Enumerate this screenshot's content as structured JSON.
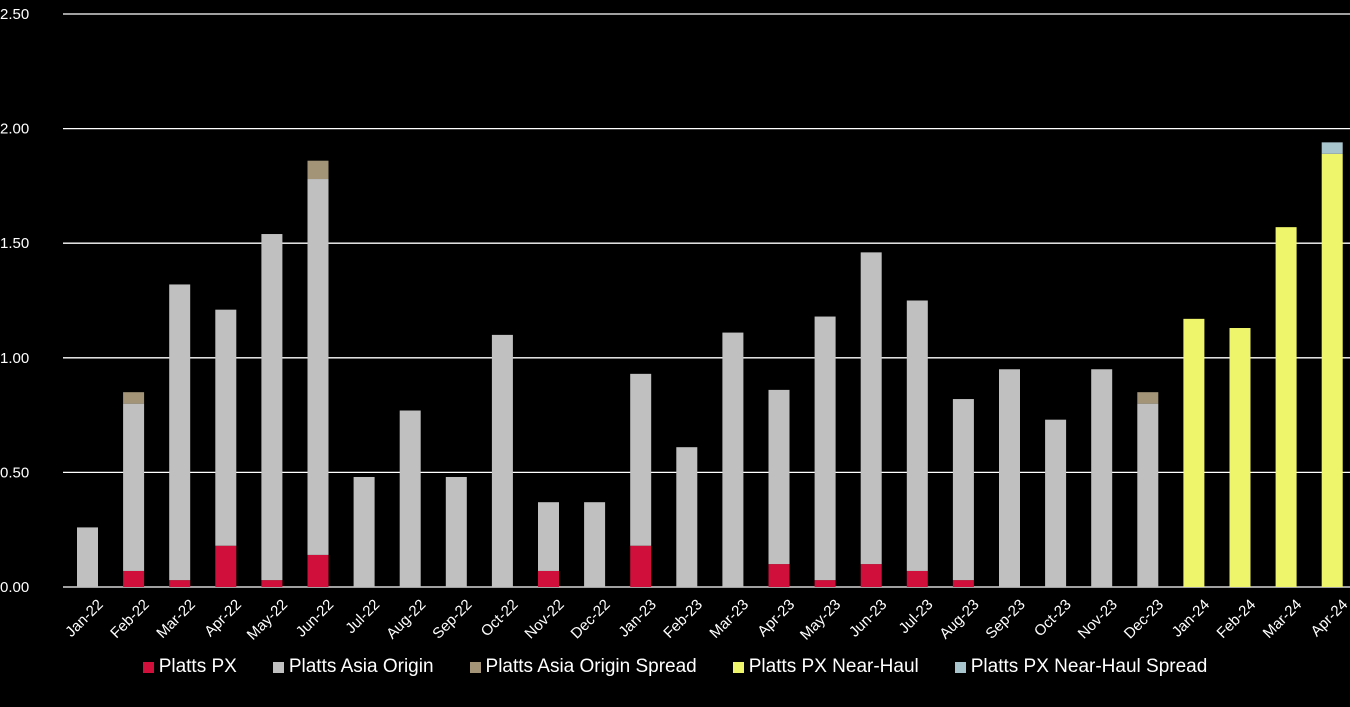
{
  "chart_data": {
    "type": "bar",
    "stacked": true,
    "categories": [
      "Jan-22",
      "Feb-22",
      "Mar-22",
      "Apr-22",
      "May-22",
      "Jun-22",
      "Jul-22",
      "Aug-22",
      "Sep-22",
      "Oct-22",
      "Nov-22",
      "Dec-22",
      "Jan-23",
      "Feb-23",
      "Mar-23",
      "Apr-23",
      "May-23",
      "Jun-23",
      "Jul-23",
      "Aug-23",
      "Sep-23",
      "Oct-23",
      "Nov-23",
      "Dec-23",
      "Jan-24",
      "Feb-24",
      "Mar-24",
      "Apr-24"
    ],
    "y_ticks": [
      "0.00",
      "0.50",
      "1.00",
      "1.50",
      "2.00",
      "2.50"
    ],
    "ylim": [
      0,
      2.5
    ],
    "grid": true,
    "legend_position": "bottom",
    "series": [
      {
        "name": "Platts PX",
        "color": "#d0103a",
        "values": [
          0,
          0.07,
          0.03,
          0.18,
          0.03,
          0.14,
          0,
          0,
          0,
          0,
          0.07,
          0,
          0.18,
          0,
          0,
          0.1,
          0.03,
          0.1,
          0.07,
          0.03,
          0,
          0,
          0,
          0,
          0,
          0,
          0,
          0
        ]
      },
      {
        "name": "Platts Asia Origin",
        "color": "#c0c0c0",
        "values": [
          0.26,
          0.73,
          1.29,
          1.03,
          1.51,
          1.64,
          0.48,
          0.77,
          0.48,
          1.1,
          0.3,
          0.37,
          0.75,
          0.61,
          1.11,
          0.76,
          1.15,
          1.36,
          1.18,
          0.79,
          0.95,
          0.73,
          0.95,
          0.8,
          0,
          0,
          0,
          0
        ]
      },
      {
        "name": "Platts Asia Origin Spread",
        "color": "#a39478",
        "values": [
          0,
          0.05,
          0,
          0,
          0,
          0.08,
          0,
          0,
          0,
          0,
          0,
          0,
          0,
          0,
          0,
          0,
          0,
          0,
          0,
          0,
          0,
          0,
          0,
          0.05,
          0,
          0,
          0,
          0
        ]
      },
      {
        "name": "Platts PX Near-Haul",
        "color": "#eff56a",
        "values": [
          0,
          0,
          0,
          0,
          0,
          0,
          0,
          0,
          0,
          0,
          0,
          0,
          0,
          0,
          0,
          0,
          0,
          0,
          0,
          0,
          0,
          0,
          0,
          0,
          1.17,
          1.13,
          1.57,
          1.89
        ]
      },
      {
        "name": "Platts PX Near-Haul Spread",
        "color": "#a8c4cc",
        "values": [
          0,
          0,
          0,
          0,
          0,
          0,
          0,
          0,
          0,
          0,
          0,
          0,
          0,
          0,
          0,
          0,
          0,
          0,
          0,
          0,
          0,
          0,
          0,
          0,
          0,
          0,
          0,
          0.05
        ]
      }
    ]
  }
}
